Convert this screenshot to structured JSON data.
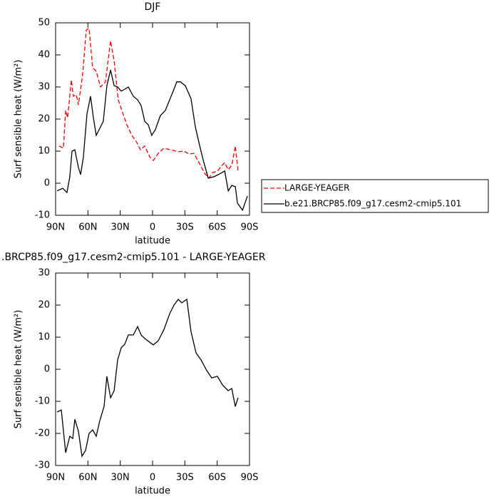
{
  "chart_data": [
    {
      "type": "line",
      "title": "DJF",
      "xlabel": "latitude",
      "ylabel": "Surf sensible heat (W/m²)",
      "xlim": [
        90,
        -90
      ],
      "ylim": [
        -10,
        50
      ],
      "xticks": [
        {
          "value": 90,
          "label": "90N"
        },
        {
          "value": 60,
          "label": "60N"
        },
        {
          "value": 30,
          "label": "30N"
        },
        0,
        {
          "value": -30,
          "label": "30S"
        },
        {
          "value": -60,
          "label": "60S"
        },
        {
          "value": -90,
          "label": "90S"
        }
      ],
      "yticks": [
        -10,
        0,
        10,
        20,
        30,
        40,
        50
      ],
      "legend": "right",
      "series": [
        {
          "name": "LARGE-YEAGER",
          "color": "#ff0000",
          "dash": true,
          "x": [
            86.7,
            82.7,
            80.7,
            78.8,
            75.4,
            73.5,
            70.8,
            68.8,
            64.9,
            61.5,
            58.9,
            55.6,
            52.3,
            48.3,
            43.7,
            41.7,
            39.0,
            35.7,
            31.8,
            28.5,
            23.8,
            19.2,
            14.6,
            11.2,
            7.3,
            2.6,
            -0.7,
            -5.3,
            -10.6,
            -17.2,
            -23.8,
            -29.1,
            -33.8,
            -38.5,
            -43.8,
            -48.4,
            -52.4,
            -55.7,
            -60.4,
            -63.7,
            -67.0,
            -70.3,
            -73.6,
            -76.8,
            -79.4
          ],
          "values": [
            11.6,
            10.9,
            22.7,
            20.4,
            32.2,
            27.1,
            27.6,
            24.4,
            33.8,
            47.8,
            48.2,
            36.0,
            34.9,
            30.0,
            31.6,
            37.1,
            44.4,
            38.2,
            26.0,
            22.7,
            18.2,
            14.9,
            12.7,
            10.4,
            11.6,
            8.2,
            7.1,
            9.3,
            10.9,
            10.4,
            9.8,
            10.0,
            9.1,
            9.3,
            6.0,
            3.1,
            1.6,
            3.3,
            3.8,
            5.3,
            6.4,
            4.2,
            5.6,
            11.6,
            3.8
          ]
        },
        {
          "name": "b.e21.BRCP85.f09_g17.cesm2-cmip5.101",
          "color": "#000000",
          "dash": false,
          "x": [
            88.7,
            83.4,
            79.4,
            76.8,
            74.8,
            72.1,
            68.8,
            66.8,
            64.2,
            60.9,
            57.6,
            54.9,
            52.3,
            49.0,
            45.7,
            42.4,
            39.0,
            35.7,
            32.4,
            29.1,
            25.8,
            22.5,
            17.9,
            13.9,
            10.6,
            7.3,
            4.0,
            0.7,
            -2.6,
            -7.3,
            -11.9,
            -15.9,
            -19.2,
            -22.5,
            -25.8,
            -30.4,
            -35.7,
            -39.7,
            -43.8,
            -47.1,
            -51.7,
            -57.0,
            -62.3,
            -67.0,
            -70.3,
            -73.6,
            -76.8,
            -78.8,
            -83.5,
            -88.1
          ],
          "values": [
            -2.4,
            -1.6,
            -2.9,
            2.0,
            10.0,
            10.4,
            4.9,
            2.7,
            8.2,
            21.6,
            27.1,
            20.4,
            14.9,
            17.1,
            19.3,
            30.4,
            35.3,
            30.4,
            30.0,
            28.7,
            29.3,
            30.0,
            27.1,
            26.0,
            24.2,
            19.3,
            18.2,
            14.9,
            16.7,
            21.1,
            22.7,
            26.0,
            28.7,
            31.6,
            31.6,
            30.4,
            26.4,
            17.6,
            11.6,
            7.1,
            1.6,
            2.0,
            2.9,
            3.8,
            -2.4,
            -0.7,
            -1.1,
            -6.2,
            -8.4,
            -4.0
          ]
        }
      ]
    },
    {
      "type": "line",
      "title": ".BRCP85.f09_g17.cesm2-cmip5.101 - LARGE-YEAGER",
      "xlabel": "latitude",
      "ylabel": "Surf sensible heat (W/m²)",
      "xlim": [
        90,
        -90
      ],
      "ylim": [
        -30,
        30
      ],
      "xticks": [
        {
          "value": 90,
          "label": "90N"
        },
        {
          "value": 60,
          "label": "60N"
        },
        {
          "value": 30,
          "label": "30N"
        },
        0,
        {
          "value": -30,
          "label": "30S"
        },
        {
          "value": -60,
          "label": "60S"
        },
        {
          "value": -90,
          "label": "90S"
        }
      ],
      "yticks": [
        -30,
        -20,
        -10,
        0,
        10,
        20,
        30
      ],
      "series": [
        {
          "color": "#000000",
          "dash": false,
          "x": [
            88.7,
            84.7,
            80.7,
            76.8,
            74.1,
            72.1,
            68.8,
            65.5,
            62.2,
            58.9,
            55.6,
            52.3,
            49.0,
            45.0,
            42.4,
            39.0,
            35.7,
            32.4,
            29.1,
            25.8,
            22.5,
            17.9,
            13.9,
            10.6,
            7.3,
            2.6,
            -0.7,
            -5.3,
            -10.6,
            -15.9,
            -19.9,
            -23.8,
            -27.1,
            -31.8,
            -35.7,
            -40.4,
            -45.0,
            -50.3,
            -54.9,
            -60.2,
            -64.9,
            -70.2,
            -73.5,
            -76.8,
            -79.4
          ],
          "values": [
            -13.3,
            -12.7,
            -26.0,
            -20.9,
            -21.6,
            -15.6,
            -19.3,
            -27.1,
            -25.3,
            -20.0,
            -18.9,
            -20.9,
            -16.0,
            -11.6,
            -2.2,
            -8.9,
            -6.7,
            2.9,
            6.7,
            7.8,
            10.7,
            10.7,
            13.3,
            10.7,
            9.6,
            8.4,
            7.6,
            8.9,
            12.4,
            17.3,
            20.0,
            21.8,
            20.7,
            21.8,
            11.8,
            5.1,
            2.9,
            -0.4,
            -2.7,
            -2.2,
            -4.9,
            -6.7,
            -6.0,
            -11.6,
            -8.9
          ]
        }
      ]
    }
  ]
}
